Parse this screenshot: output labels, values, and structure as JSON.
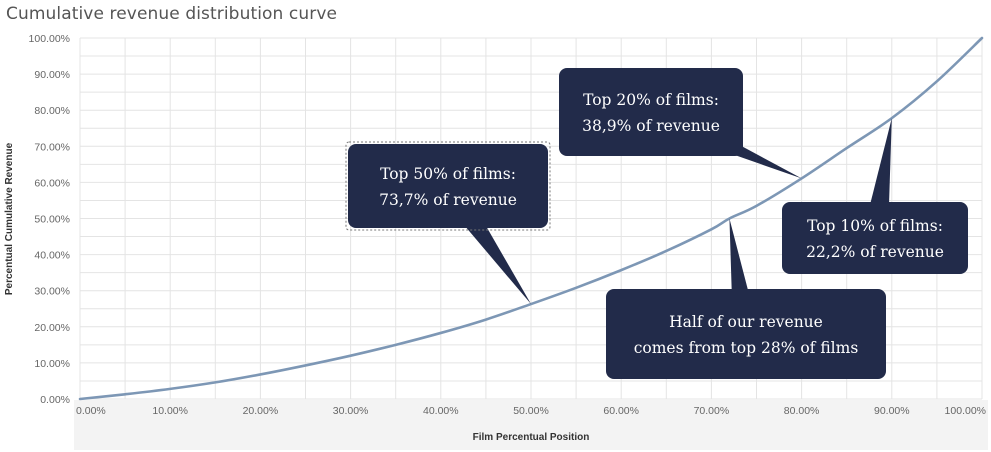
{
  "chart_data": {
    "type": "line",
    "title": "Cumulative revenue distribution curve",
    "xlabel": "Film Percentual Position",
    "ylabel": "Percentual Cumulative Revenue",
    "xlim": [
      0,
      100
    ],
    "ylim": [
      0,
      100
    ],
    "x_ticks": [
      "0.00%",
      "10.00%",
      "20.00%",
      "30.00%",
      "40.00%",
      "50.00%",
      "60.00%",
      "70.00%",
      "80.00%",
      "90.00%",
      "100.00%"
    ],
    "y_ticks": [
      "0.00%",
      "10.00%",
      "20.00%",
      "30.00%",
      "40.00%",
      "50.00%",
      "60.00%",
      "70.00%",
      "80.00%",
      "90.00%",
      "100.00%"
    ],
    "grid": true,
    "series": [
      {
        "x": [
          0,
          5,
          10,
          15,
          20,
          25,
          30,
          35,
          40,
          45,
          50,
          55,
          60,
          65,
          70,
          72,
          75,
          80,
          85,
          90,
          95,
          100
        ],
        "y": [
          0,
          1.3,
          2.8,
          4.6,
          6.8,
          9.3,
          12.0,
          15.0,
          18.3,
          22.0,
          26.3,
          30.8,
          35.7,
          41.0,
          47.0,
          50.0,
          53.5,
          61.1,
          69.5,
          77.8,
          88.0,
          100.0
        ],
        "color": "#7d97b5"
      }
    ],
    "annotations": [
      {
        "id": "top50",
        "lines": [
          "Top 50% of films:",
          "73,7% of revenue"
        ],
        "x": 50,
        "y": 26.3
      },
      {
        "id": "top20",
        "lines": [
          "Top 20% of films:",
          "38,9% of revenue"
        ],
        "x": 80,
        "y": 61.1
      },
      {
        "id": "top10",
        "lines": [
          "Top 10% of films:",
          "22,2% of revenue"
        ],
        "x": 90,
        "y": 77.8
      },
      {
        "id": "half",
        "lines": [
          "Half of our revenue",
          "comes from top 28% of films"
        ],
        "x": 72,
        "y": 50.0
      }
    ]
  },
  "colors": {
    "line": "#7d97b5",
    "callout": "#222b4a",
    "grid": "#e4e4e4",
    "xaxis_band": "#f3f3f3"
  }
}
